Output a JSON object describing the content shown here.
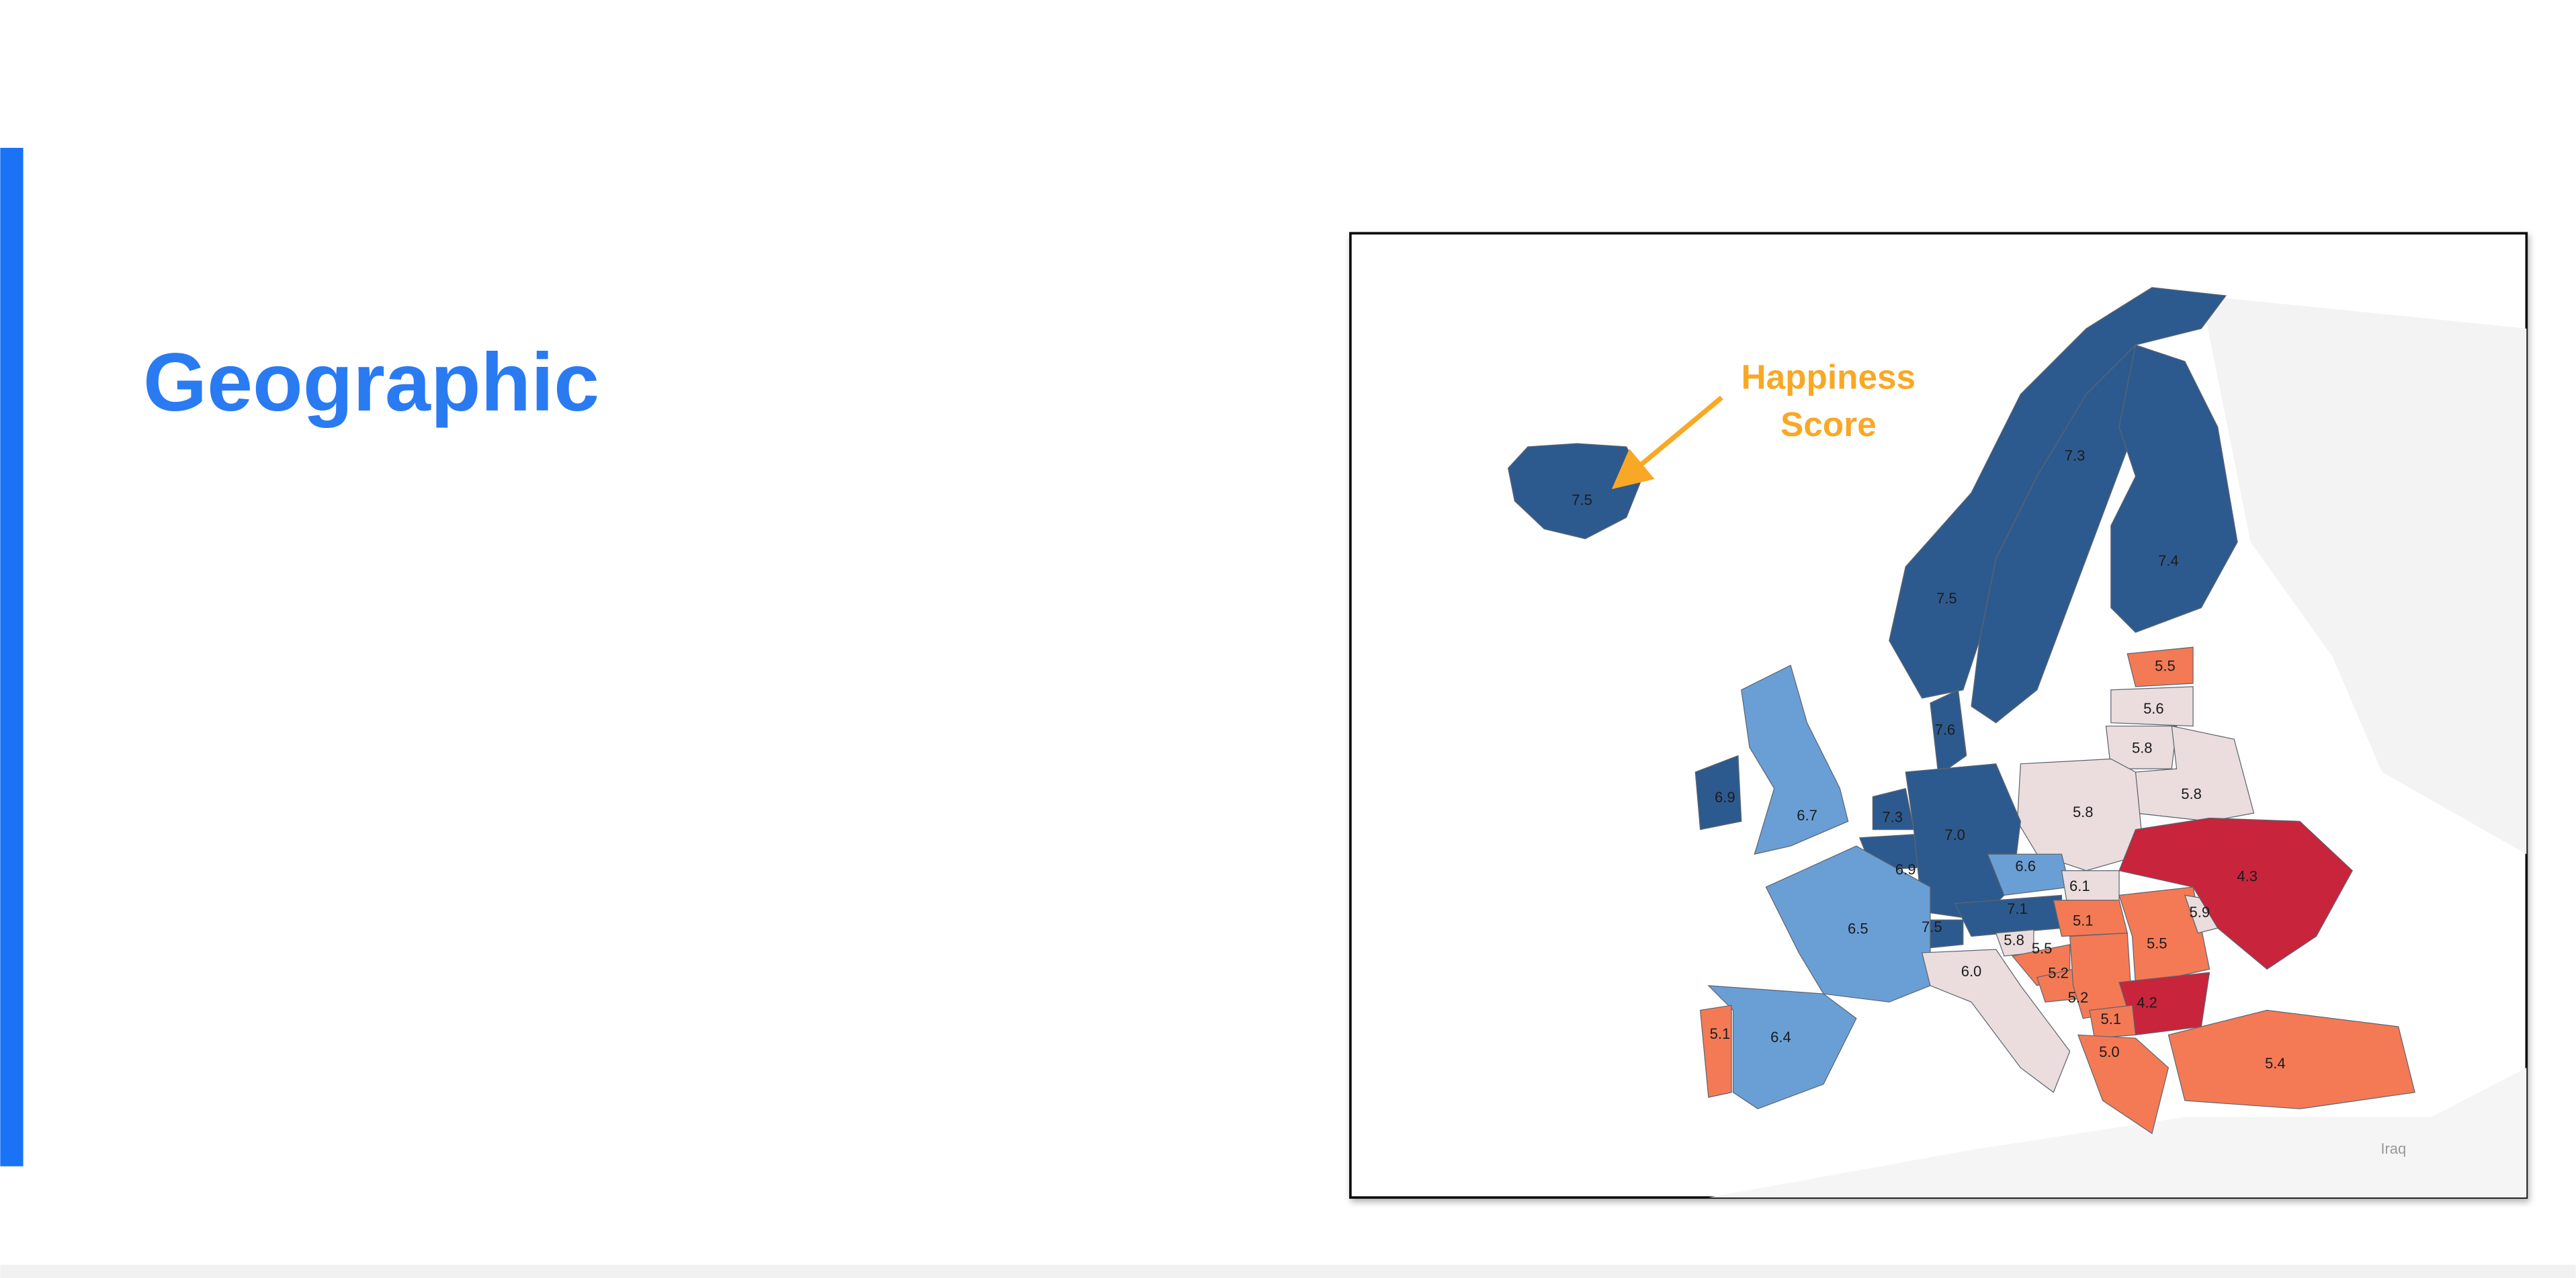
{
  "slide": {
    "title": "Geographic"
  },
  "map": {
    "annotation": [
      "Happiness",
      "Score"
    ],
    "regions": [
      {
        "label": "7.5"
      },
      {
        "label": "7.5"
      },
      {
        "label": "7.3"
      },
      {
        "label": "7.4"
      },
      {
        "label": "7.6"
      },
      {
        "label": "5.5"
      },
      {
        "label": "5.6"
      },
      {
        "label": "5.8"
      },
      {
        "label": "5.8"
      },
      {
        "label": "5.8"
      },
      {
        "label": "6.9"
      },
      {
        "label": "6.7"
      },
      {
        "label": "7.3"
      },
      {
        "label": "6.9"
      },
      {
        "label": "7.0"
      },
      {
        "label": "6.6"
      },
      {
        "label": "6.1"
      },
      {
        "label": "7.1"
      },
      {
        "label": "7.5"
      },
      {
        "label": "5.1"
      },
      {
        "label": "5.5"
      },
      {
        "label": "5.9"
      },
      {
        "label": "4.3"
      },
      {
        "label": "6.5"
      },
      {
        "label": "6.0"
      },
      {
        "label": "5.8"
      },
      {
        "label": "5.5"
      },
      {
        "label": "5.2"
      },
      {
        "label": "5.2"
      },
      {
        "label": "4.2"
      },
      {
        "label": "5.1"
      },
      {
        "label": "5.0"
      },
      {
        "label": "5.4"
      },
      {
        "label": "6.4"
      },
      {
        "label": "5.1"
      }
    ],
    "place_label": "Iraq"
  }
}
